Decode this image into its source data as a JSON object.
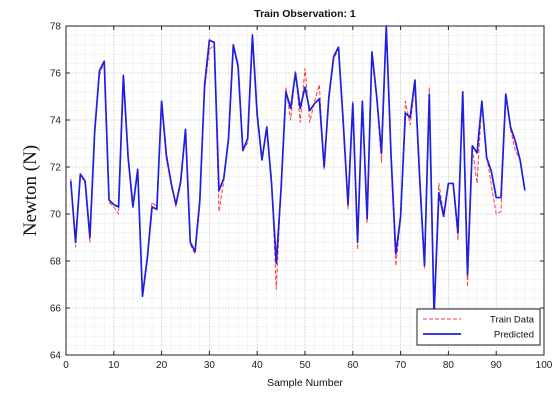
{
  "chart_data": {
    "type": "line",
    "title": "Train Observation: 1",
    "xlabel": "Sample Number",
    "ylabel": "Newton (N)",
    "xlim": [
      0,
      100
    ],
    "ylim": [
      64,
      78
    ],
    "xticks": [
      0,
      10,
      20,
      30,
      40,
      50,
      60,
      70,
      80,
      90,
      100
    ],
    "yticks": [
      64,
      66,
      68,
      70,
      72,
      74,
      76,
      78
    ],
    "grid": true,
    "legend_position": "bottom-right",
    "x": [
      1,
      2,
      3,
      4,
      5,
      6,
      7,
      8,
      9,
      10,
      11,
      12,
      13,
      14,
      15,
      16,
      17,
      18,
      19,
      20,
      21,
      22,
      23,
      24,
      25,
      26,
      27,
      28,
      29,
      30,
      31,
      32,
      33,
      34,
      35,
      36,
      37,
      38,
      39,
      40,
      41,
      42,
      43,
      44,
      45,
      46,
      47,
      48,
      49,
      50,
      51,
      52,
      53,
      54,
      55,
      56,
      57,
      58,
      59,
      60,
      61,
      62,
      63,
      64,
      65,
      66,
      67,
      68,
      69,
      70,
      71,
      72,
      73,
      74,
      75,
      76,
      77,
      78,
      79,
      80,
      81,
      82,
      83,
      84,
      85,
      86,
      87,
      88,
      89,
      90,
      91,
      92,
      93,
      94,
      95,
      96
    ],
    "series": [
      {
        "name": "Train Data",
        "color": "#ff3b3b",
        "style": "dashed",
        "values": [
          71.5,
          68.6,
          71.7,
          71.3,
          68.8,
          73.6,
          75.9,
          76.5,
          70.5,
          70.3,
          70.0,
          75.7,
          72.3,
          70.3,
          71.8,
          66.6,
          68.2,
          70.5,
          70.3,
          74.7,
          72.3,
          71.4,
          70.3,
          71.3,
          73.5,
          68.7,
          68.3,
          70.4,
          75.3,
          77.0,
          77.2,
          70.1,
          71.4,
          73.3,
          77.1,
          76.2,
          72.8,
          73.0,
          77.7,
          74.4,
          72.4,
          73.6,
          71.5,
          66.8,
          71.2,
          75.4,
          74.0,
          76.1,
          73.9,
          76.2,
          73.9,
          74.8,
          75.5,
          71.9,
          74.9,
          76.6,
          77.0,
          73.8,
          70.2,
          74.8,
          68.5,
          74.8,
          69.6,
          76.8,
          74.9,
          72.2,
          78.0,
          72.2,
          67.8,
          69.8,
          74.8,
          73.8,
          75.5,
          71.3,
          67.7,
          75.4,
          65.9,
          71.3,
          70.0,
          71.3,
          71.3,
          68.9,
          75.2,
          66.9,
          72.8,
          71.3,
          74.8,
          72.5,
          71.2,
          70.0,
          70.1,
          75.1,
          73.6,
          72.7,
          72.3,
          71.0
        ]
      },
      {
        "name": "Predicted",
        "color": "#1f1fe0",
        "style": "solid",
        "values": [
          71.4,
          68.8,
          71.7,
          71.4,
          69.0,
          73.5,
          76.1,
          76.5,
          70.6,
          70.4,
          70.3,
          75.9,
          72.4,
          70.3,
          71.9,
          66.5,
          68.1,
          70.3,
          70.2,
          74.8,
          72.5,
          71.3,
          70.4,
          71.4,
          73.6,
          68.8,
          68.4,
          70.6,
          75.5,
          77.4,
          77.3,
          71.0,
          71.5,
          73.2,
          77.2,
          76.3,
          72.7,
          73.2,
          77.6,
          74.2,
          72.3,
          73.7,
          71.3,
          67.9,
          71.1,
          75.2,
          74.5,
          76.0,
          74.5,
          75.4,
          74.4,
          74.7,
          74.9,
          72.0,
          75.0,
          76.7,
          77.1,
          73.9,
          70.4,
          74.7,
          68.8,
          74.8,
          69.8,
          76.9,
          75.0,
          72.6,
          78.0,
          72.5,
          68.3,
          69.9,
          74.3,
          74.1,
          75.7,
          71.5,
          67.8,
          75.1,
          65.7,
          70.9,
          69.9,
          71.3,
          71.3,
          69.2,
          75.2,
          67.4,
          72.9,
          72.6,
          74.8,
          72.4,
          71.8,
          70.7,
          70.7,
          75.1,
          73.7,
          73.1,
          72.3,
          71.0
        ]
      }
    ]
  }
}
